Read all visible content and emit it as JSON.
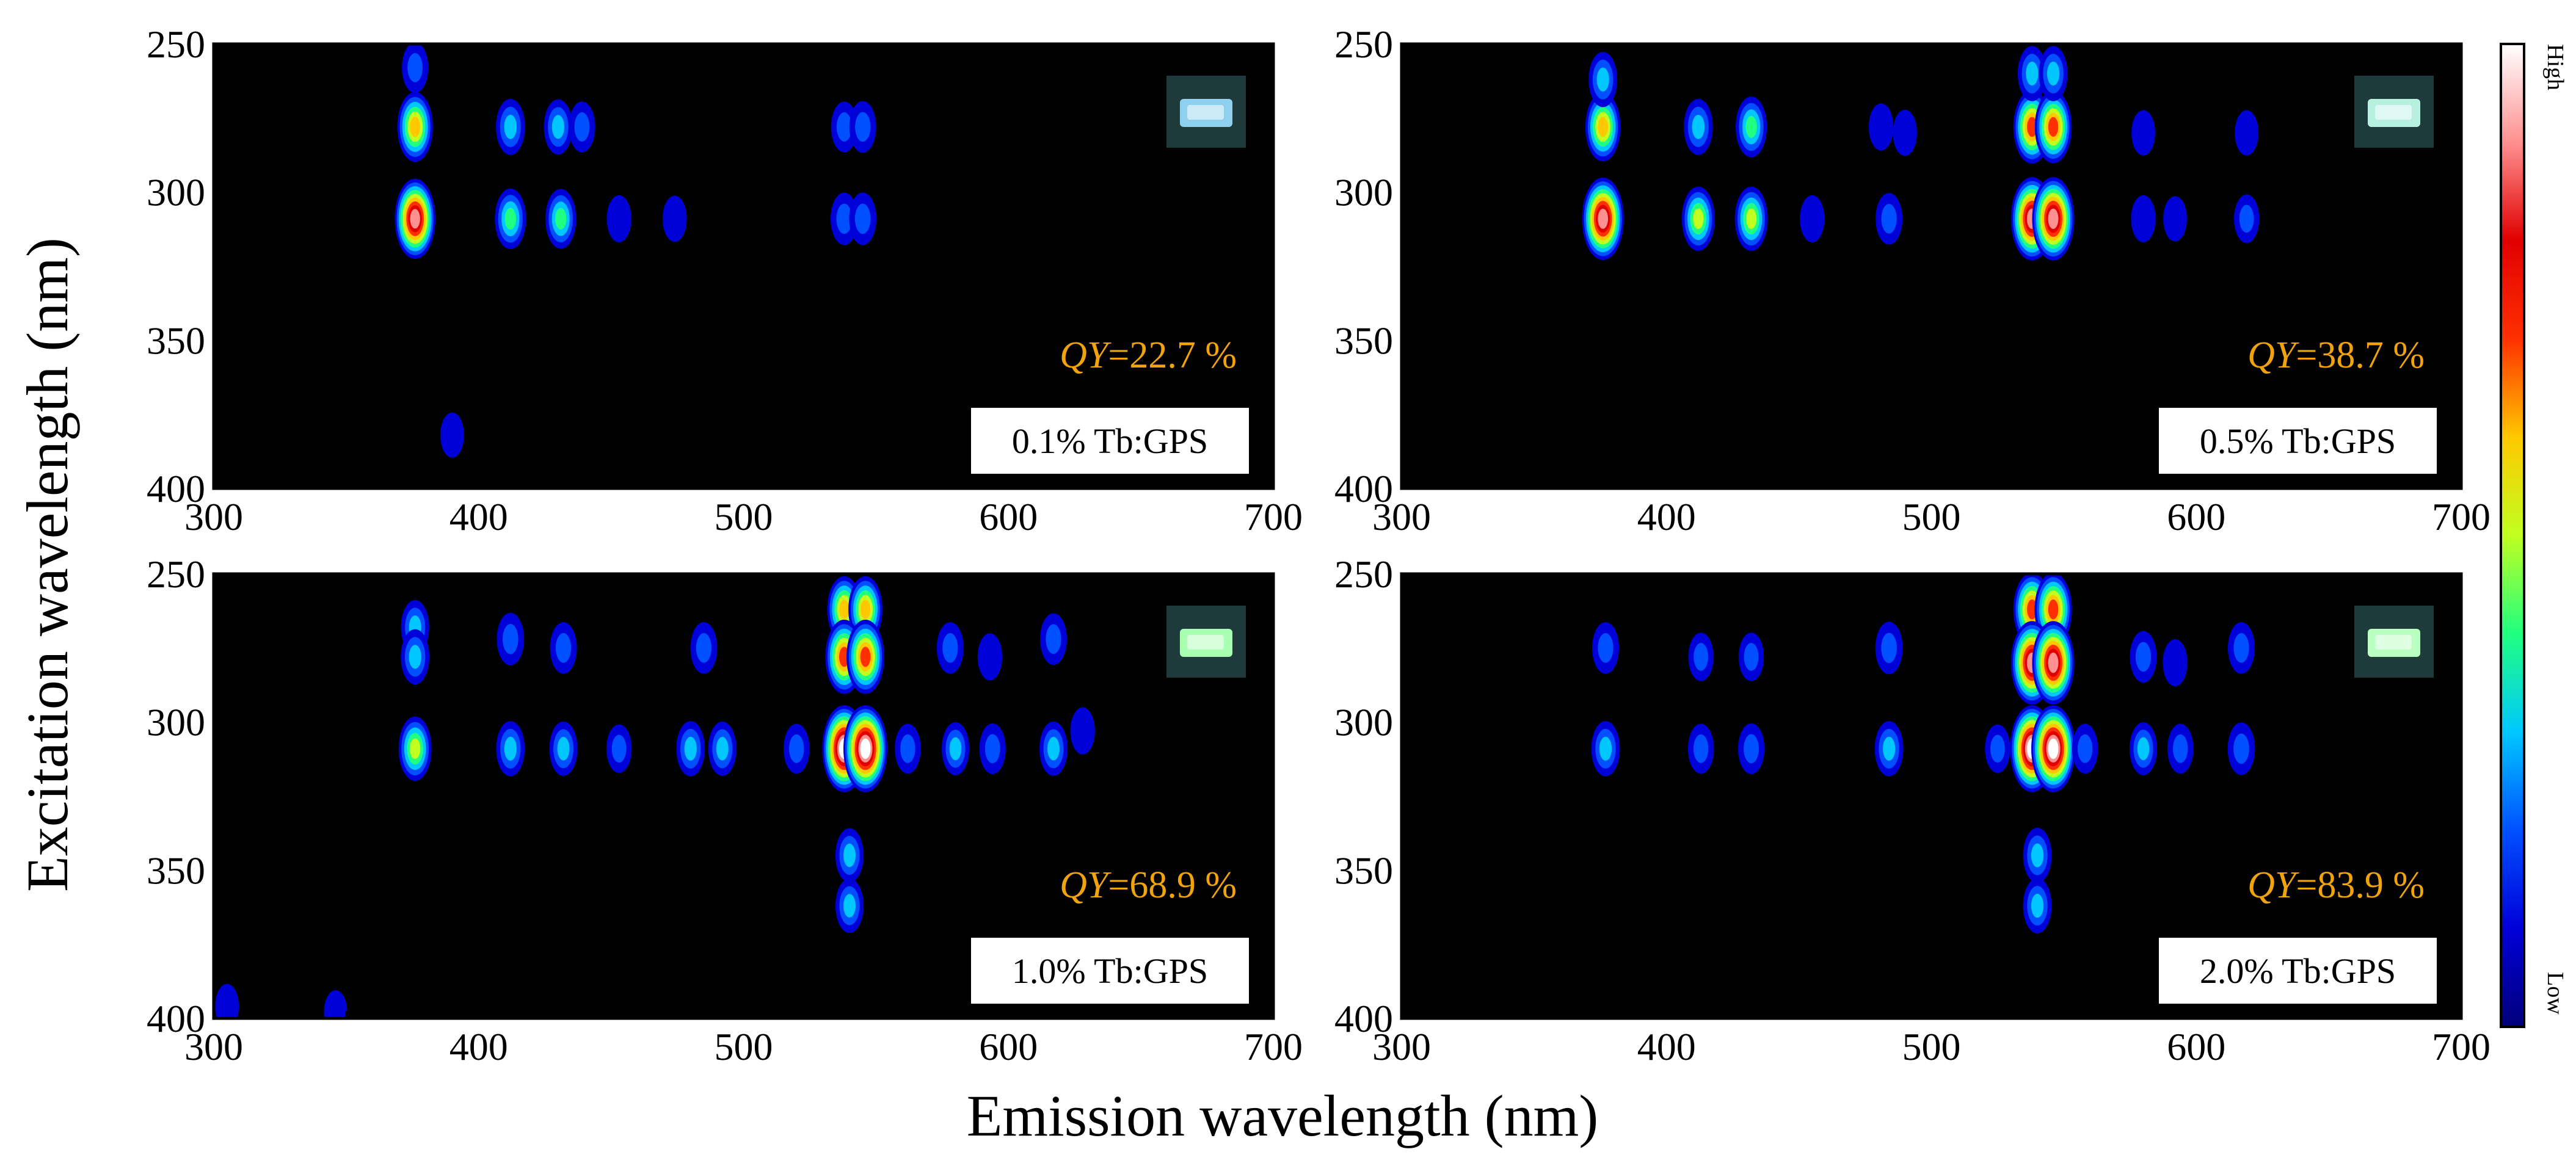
{
  "colors": {
    "background": "#000000",
    "qy_text": "#f0a30a",
    "colormap": [
      "#00007a",
      "#0000d8",
      "#0050ff",
      "#00c8ff",
      "#20ff80",
      "#c0ff20",
      "#ffc800",
      "#ff3000",
      "#e00000",
      "#ff9090",
      "#ffffff"
    ]
  },
  "figure": {
    "xlabel": "Emission wavelength (nm)",
    "ylabel": "Excitation wavelength (nm)"
  },
  "colorbar": {
    "high_label": "High",
    "low_label": "Low"
  },
  "chart_data": [
    {
      "type": "heatmap",
      "sample_label": "0.1% Tb:GPS",
      "qy_prefix": "QY",
      "qy_value": "=22.7 %",
      "photo_color": "#8fd0ee",
      "xlim": [
        300,
        700
      ],
      "ylim": [
        250,
        400
      ],
      "xticks": [
        "300",
        "400",
        "500",
        "600",
        "700"
      ],
      "yticks": [
        "250",
        "300",
        "350",
        "400"
      ],
      "peaks": [
        {
          "x": 376,
          "y": 278,
          "i": 0.62
        },
        {
          "x": 376,
          "y": 309,
          "i": 0.85
        },
        {
          "x": 376,
          "y": 258,
          "i": 0.2
        },
        {
          "x": 412,
          "y": 278,
          "i": 0.32
        },
        {
          "x": 412,
          "y": 309,
          "i": 0.42
        },
        {
          "x": 430,
          "y": 278,
          "i": 0.3
        },
        {
          "x": 431,
          "y": 309,
          "i": 0.4
        },
        {
          "x": 439,
          "y": 278,
          "i": 0.2
        },
        {
          "x": 453,
          "y": 309,
          "i": 0.12
        },
        {
          "x": 474,
          "y": 309,
          "i": 0.1
        },
        {
          "x": 538,
          "y": 278,
          "i": 0.2
        },
        {
          "x": 545,
          "y": 278,
          "i": 0.22
        },
        {
          "x": 538,
          "y": 309,
          "i": 0.24
        },
        {
          "x": 545,
          "y": 309,
          "i": 0.24
        },
        {
          "x": 390,
          "y": 382,
          "i": 0.08
        }
      ]
    },
    {
      "type": "heatmap",
      "sample_label": "0.5% Tb:GPS",
      "qy_prefix": "QY",
      "qy_value": "=38.7 %",
      "photo_color": "#b8f0e0",
      "xlim": [
        300,
        700
      ],
      "ylim": [
        250,
        400
      ],
      "xticks": [
        "300",
        "400",
        "500",
        "600",
        "700"
      ],
      "yticks": [
        "250",
        "300",
        "350",
        "400"
      ],
      "peaks": [
        {
          "x": 376,
          "y": 278,
          "i": 0.6
        },
        {
          "x": 376,
          "y": 309,
          "i": 0.9
        },
        {
          "x": 376,
          "y": 262,
          "i": 0.3
        },
        {
          "x": 412,
          "y": 278,
          "i": 0.32
        },
        {
          "x": 412,
          "y": 309,
          "i": 0.5
        },
        {
          "x": 432,
          "y": 278,
          "i": 0.42
        },
        {
          "x": 432,
          "y": 309,
          "i": 0.5
        },
        {
          "x": 455,
          "y": 309,
          "i": 0.12
        },
        {
          "x": 481,
          "y": 278,
          "i": 0.12
        },
        {
          "x": 484,
          "y": 309,
          "i": 0.22
        },
        {
          "x": 490,
          "y": 280,
          "i": 0.1
        },
        {
          "x": 538,
          "y": 278,
          "i": 0.7
        },
        {
          "x": 546,
          "y": 278,
          "i": 0.68
        },
        {
          "x": 538,
          "y": 309,
          "i": 0.92
        },
        {
          "x": 546,
          "y": 309,
          "i": 0.92
        },
        {
          "x": 538,
          "y": 260,
          "i": 0.3
        },
        {
          "x": 546,
          "y": 260,
          "i": 0.3
        },
        {
          "x": 580,
          "y": 309,
          "i": 0.12
        },
        {
          "x": 580,
          "y": 280,
          "i": 0.08
        },
        {
          "x": 592,
          "y": 309,
          "i": 0.08
        },
        {
          "x": 619,
          "y": 309,
          "i": 0.15
        },
        {
          "x": 619,
          "y": 280,
          "i": 0.08
        }
      ]
    },
    {
      "type": "heatmap",
      "sample_label": "1.0% Tb:GPS",
      "qy_prefix": "QY",
      "qy_value": "=68.9 %",
      "photo_color": "#a8ffb0",
      "xlim": [
        300,
        700
      ],
      "ylim": [
        250,
        400
      ],
      "xticks": [
        "300",
        "400",
        "500",
        "600",
        "700"
      ],
      "yticks": [
        "250",
        "300",
        "350",
        "400"
      ],
      "peaks": [
        {
          "x": 376,
          "y": 268,
          "i": 0.28
        },
        {
          "x": 376,
          "y": 278,
          "i": 0.3
        },
        {
          "x": 376,
          "y": 309,
          "i": 0.5
        },
        {
          "x": 412,
          "y": 272,
          "i": 0.24
        },
        {
          "x": 412,
          "y": 309,
          "i": 0.3
        },
        {
          "x": 432,
          "y": 275,
          "i": 0.22
        },
        {
          "x": 432,
          "y": 309,
          "i": 0.28
        },
        {
          "x": 453,
          "y": 309,
          "i": 0.15
        },
        {
          "x": 485,
          "y": 275,
          "i": 0.22
        },
        {
          "x": 480,
          "y": 309,
          "i": 0.3
        },
        {
          "x": 492,
          "y": 309,
          "i": 0.28
        },
        {
          "x": 538,
          "y": 262,
          "i": 0.55
        },
        {
          "x": 546,
          "y": 262,
          "i": 0.55
        },
        {
          "x": 538,
          "y": 278,
          "i": 0.72
        },
        {
          "x": 546,
          "y": 278,
          "i": 0.72
        },
        {
          "x": 538,
          "y": 309,
          "i": 1.0
        },
        {
          "x": 546,
          "y": 309,
          "i": 1.0
        },
        {
          "x": 520,
          "y": 309,
          "i": 0.18
        },
        {
          "x": 562,
          "y": 309,
          "i": 0.18
        },
        {
          "x": 540,
          "y": 345,
          "i": 0.28
        },
        {
          "x": 540,
          "y": 362,
          "i": 0.28
        },
        {
          "x": 578,
          "y": 275,
          "i": 0.22
        },
        {
          "x": 580,
          "y": 309,
          "i": 0.25
        },
        {
          "x": 594,
          "y": 309,
          "i": 0.2
        },
        {
          "x": 593,
          "y": 278,
          "i": 0.12
        },
        {
          "x": 617,
          "y": 272,
          "i": 0.22
        },
        {
          "x": 617,
          "y": 309,
          "i": 0.28
        },
        {
          "x": 628,
          "y": 303,
          "i": 0.12
        },
        {
          "x": 305,
          "y": 396,
          "i": 0.08
        },
        {
          "x": 346,
          "y": 398,
          "i": 0.06
        }
      ]
    },
    {
      "type": "heatmap",
      "sample_label": "2.0% Tb:GPS",
      "qy_prefix": "QY",
      "qy_value": "=83.9 %",
      "photo_color": "#b8ffc0",
      "xlim": [
        300,
        700
      ],
      "ylim": [
        250,
        400
      ],
      "xticks": [
        "300",
        "400",
        "500",
        "600",
        "700"
      ],
      "yticks": [
        "250",
        "300",
        "350",
        "400"
      ],
      "peaks": [
        {
          "x": 377,
          "y": 275,
          "i": 0.22
        },
        {
          "x": 377,
          "y": 309,
          "i": 0.3
        },
        {
          "x": 413,
          "y": 278,
          "i": 0.15
        },
        {
          "x": 413,
          "y": 309,
          "i": 0.18
        },
        {
          "x": 432,
          "y": 278,
          "i": 0.15
        },
        {
          "x": 432,
          "y": 309,
          "i": 0.2
        },
        {
          "x": 484,
          "y": 275,
          "i": 0.24
        },
        {
          "x": 484,
          "y": 309,
          "i": 0.3
        },
        {
          "x": 538,
          "y": 262,
          "i": 0.7
        },
        {
          "x": 546,
          "y": 262,
          "i": 0.7
        },
        {
          "x": 538,
          "y": 280,
          "i": 0.92
        },
        {
          "x": 546,
          "y": 280,
          "i": 0.92
        },
        {
          "x": 538,
          "y": 309,
          "i": 1.0
        },
        {
          "x": 546,
          "y": 309,
          "i": 1.0
        },
        {
          "x": 525,
          "y": 309,
          "i": 0.15
        },
        {
          "x": 558,
          "y": 309,
          "i": 0.18
        },
        {
          "x": 540,
          "y": 345,
          "i": 0.3
        },
        {
          "x": 540,
          "y": 362,
          "i": 0.3
        },
        {
          "x": 580,
          "y": 278,
          "i": 0.22
        },
        {
          "x": 580,
          "y": 309,
          "i": 0.25
        },
        {
          "x": 594,
          "y": 309,
          "i": 0.18
        },
        {
          "x": 592,
          "y": 280,
          "i": 0.12
        },
        {
          "x": 617,
          "y": 275,
          "i": 0.22
        },
        {
          "x": 617,
          "y": 309,
          "i": 0.24
        }
      ]
    }
  ]
}
